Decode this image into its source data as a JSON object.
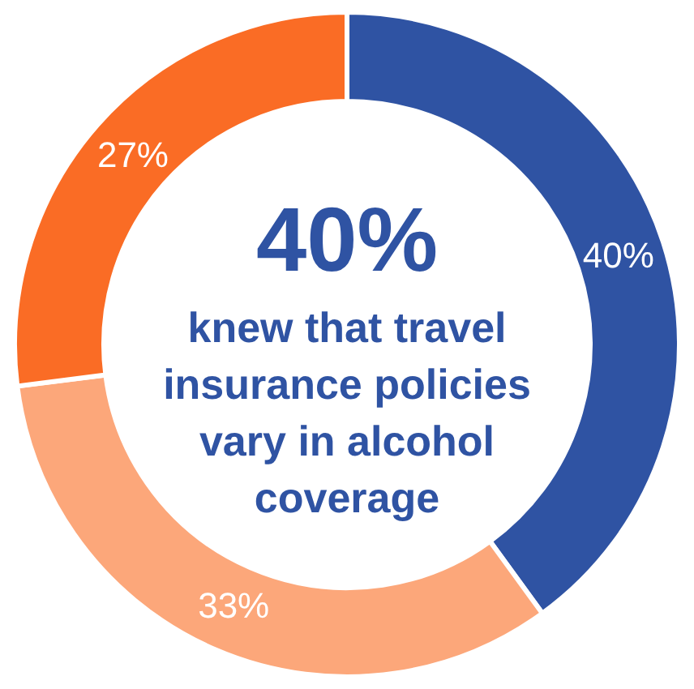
{
  "chart_data": {
    "type": "donut",
    "categories": [
      null,
      null,
      null
    ],
    "values": [
      40,
      33,
      27
    ],
    "colors": [
      "#2f53a3",
      "#fca77a",
      "#fa6c25"
    ],
    "value_labels": [
      "40%",
      "33%",
      "27%"
    ],
    "annotations": [
      "40%",
      "knew that travel\ninsurance policies\nvary in alcohol\ncoverage"
    ],
    "legend": false
  }
}
